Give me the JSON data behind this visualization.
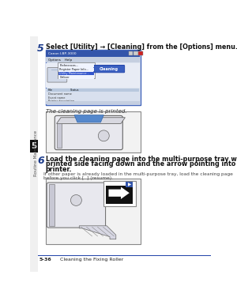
{
  "page_bg": "#ffffff",
  "sidebar_bg": "#f5f5f5",
  "sidebar_number": "5",
  "sidebar_label": "Routine Maintenance",
  "step5_number": "5",
  "step5_number_color": "#1a3a8a",
  "step5_text": "Select [Utility] → [Cleaning] from the [Options] menu.",
  "step5_sub": "The cleaning page is printed.",
  "step6_number": "6",
  "step6_number_color": "#1a3a8a",
  "step6_text_line1": "Load the cleaning page into the multi-purpose tray with the",
  "step6_text_line2": "printed side facing down and the arrow pointing into the",
  "step6_text_line3": "printer.",
  "step6_sub_line1": "If other paper is already loaded in the multi-purpose tray, load the cleaning page",
  "step6_sub_line2": "before you click [  ] (resume).",
  "footer_line_color": "#2244aa",
  "footer_text_left": "5-36",
  "footer_text_right": "Cleaning the Fixing Roller",
  "body_text_color": "#111111",
  "small_text_color": "#444444",
  "dialog_border": "#4466bb",
  "dialog_titlebar": "#3355aa",
  "dialog_bg": "#dde4ef",
  "dialog_inner_bg": "#e8ecf5",
  "dialog_menu_bg": "#c5cfe0",
  "dialog_bottom_bg": "#d8e0ee",
  "dialog_btn_bg": "#3a5fc0",
  "img_border": "#888888",
  "img_bg": "#f2f2f2"
}
